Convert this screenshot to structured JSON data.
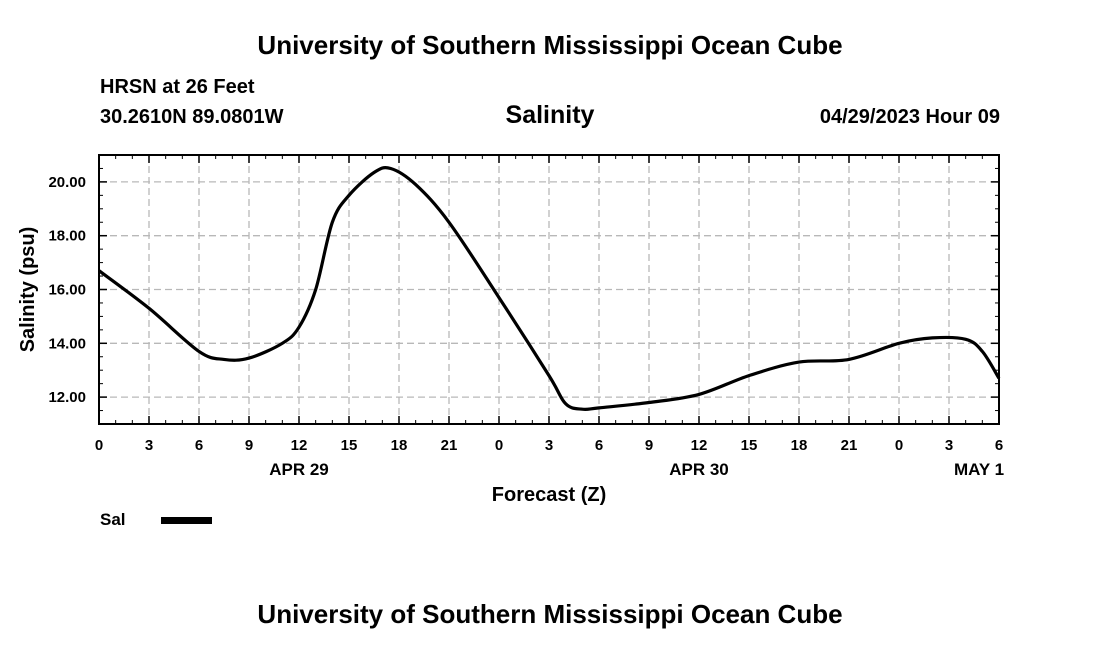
{
  "header": {
    "top_title": "University of Southern Mississippi Ocean Cube",
    "station": "HRSN at 26 Feet",
    "coordinates": "30.2610N  89.0801W",
    "datetime": "04/29/2023 Hour 09",
    "bottom_title": "University of Southern Mississippi Ocean Cube"
  },
  "legend": {
    "label": "Sal",
    "color": "#000000"
  },
  "chart_data": {
    "type": "line",
    "title": "Salinity",
    "xlabel": "Forecast (Z)",
    "ylabel": "Salinity (psu)",
    "xlim": [
      0,
      54
    ],
    "ylim": [
      11.0,
      21.0
    ],
    "x_ticks": [
      0,
      3,
      6,
      9,
      12,
      15,
      18,
      21,
      24,
      27,
      30,
      33,
      36,
      39,
      42,
      45,
      48,
      51,
      54
    ],
    "x_tick_labels": [
      "0",
      "3",
      "6",
      "9",
      "12",
      "15",
      "18",
      "21",
      "0",
      "3",
      "6",
      "9",
      "12",
      "15",
      "18",
      "21",
      "0",
      "3",
      "6"
    ],
    "date_labels": [
      {
        "x": 12,
        "label": "APR 29"
      },
      {
        "x": 36,
        "label": "APR 30"
      },
      {
        "x": 52.8,
        "label": "MAY 1"
      }
    ],
    "y_ticks": [
      12.0,
      14.0,
      16.0,
      18.0,
      20.0
    ],
    "y_tick_labels": [
      "12.00",
      "14.00",
      "16.00",
      "18.00",
      "20.00"
    ],
    "grid": true,
    "series": [
      {
        "name": "Sal",
        "x": [
          0,
          3,
          6,
          7.5,
          9,
          11,
          12,
          13,
          14,
          15,
          16.5,
          17.5,
          19,
          21,
          24,
          27,
          28,
          29,
          30,
          33,
          36,
          39,
          42,
          45,
          48,
          50,
          52,
          53,
          54
        ],
        "values": [
          16.7,
          15.3,
          13.7,
          13.4,
          13.45,
          14.0,
          14.6,
          16.0,
          18.5,
          19.5,
          20.35,
          20.5,
          19.9,
          18.5,
          15.7,
          12.8,
          11.75,
          11.55,
          11.6,
          11.8,
          12.1,
          12.8,
          13.3,
          13.4,
          14.0,
          14.2,
          14.15,
          13.7,
          12.7
        ]
      }
    ]
  }
}
